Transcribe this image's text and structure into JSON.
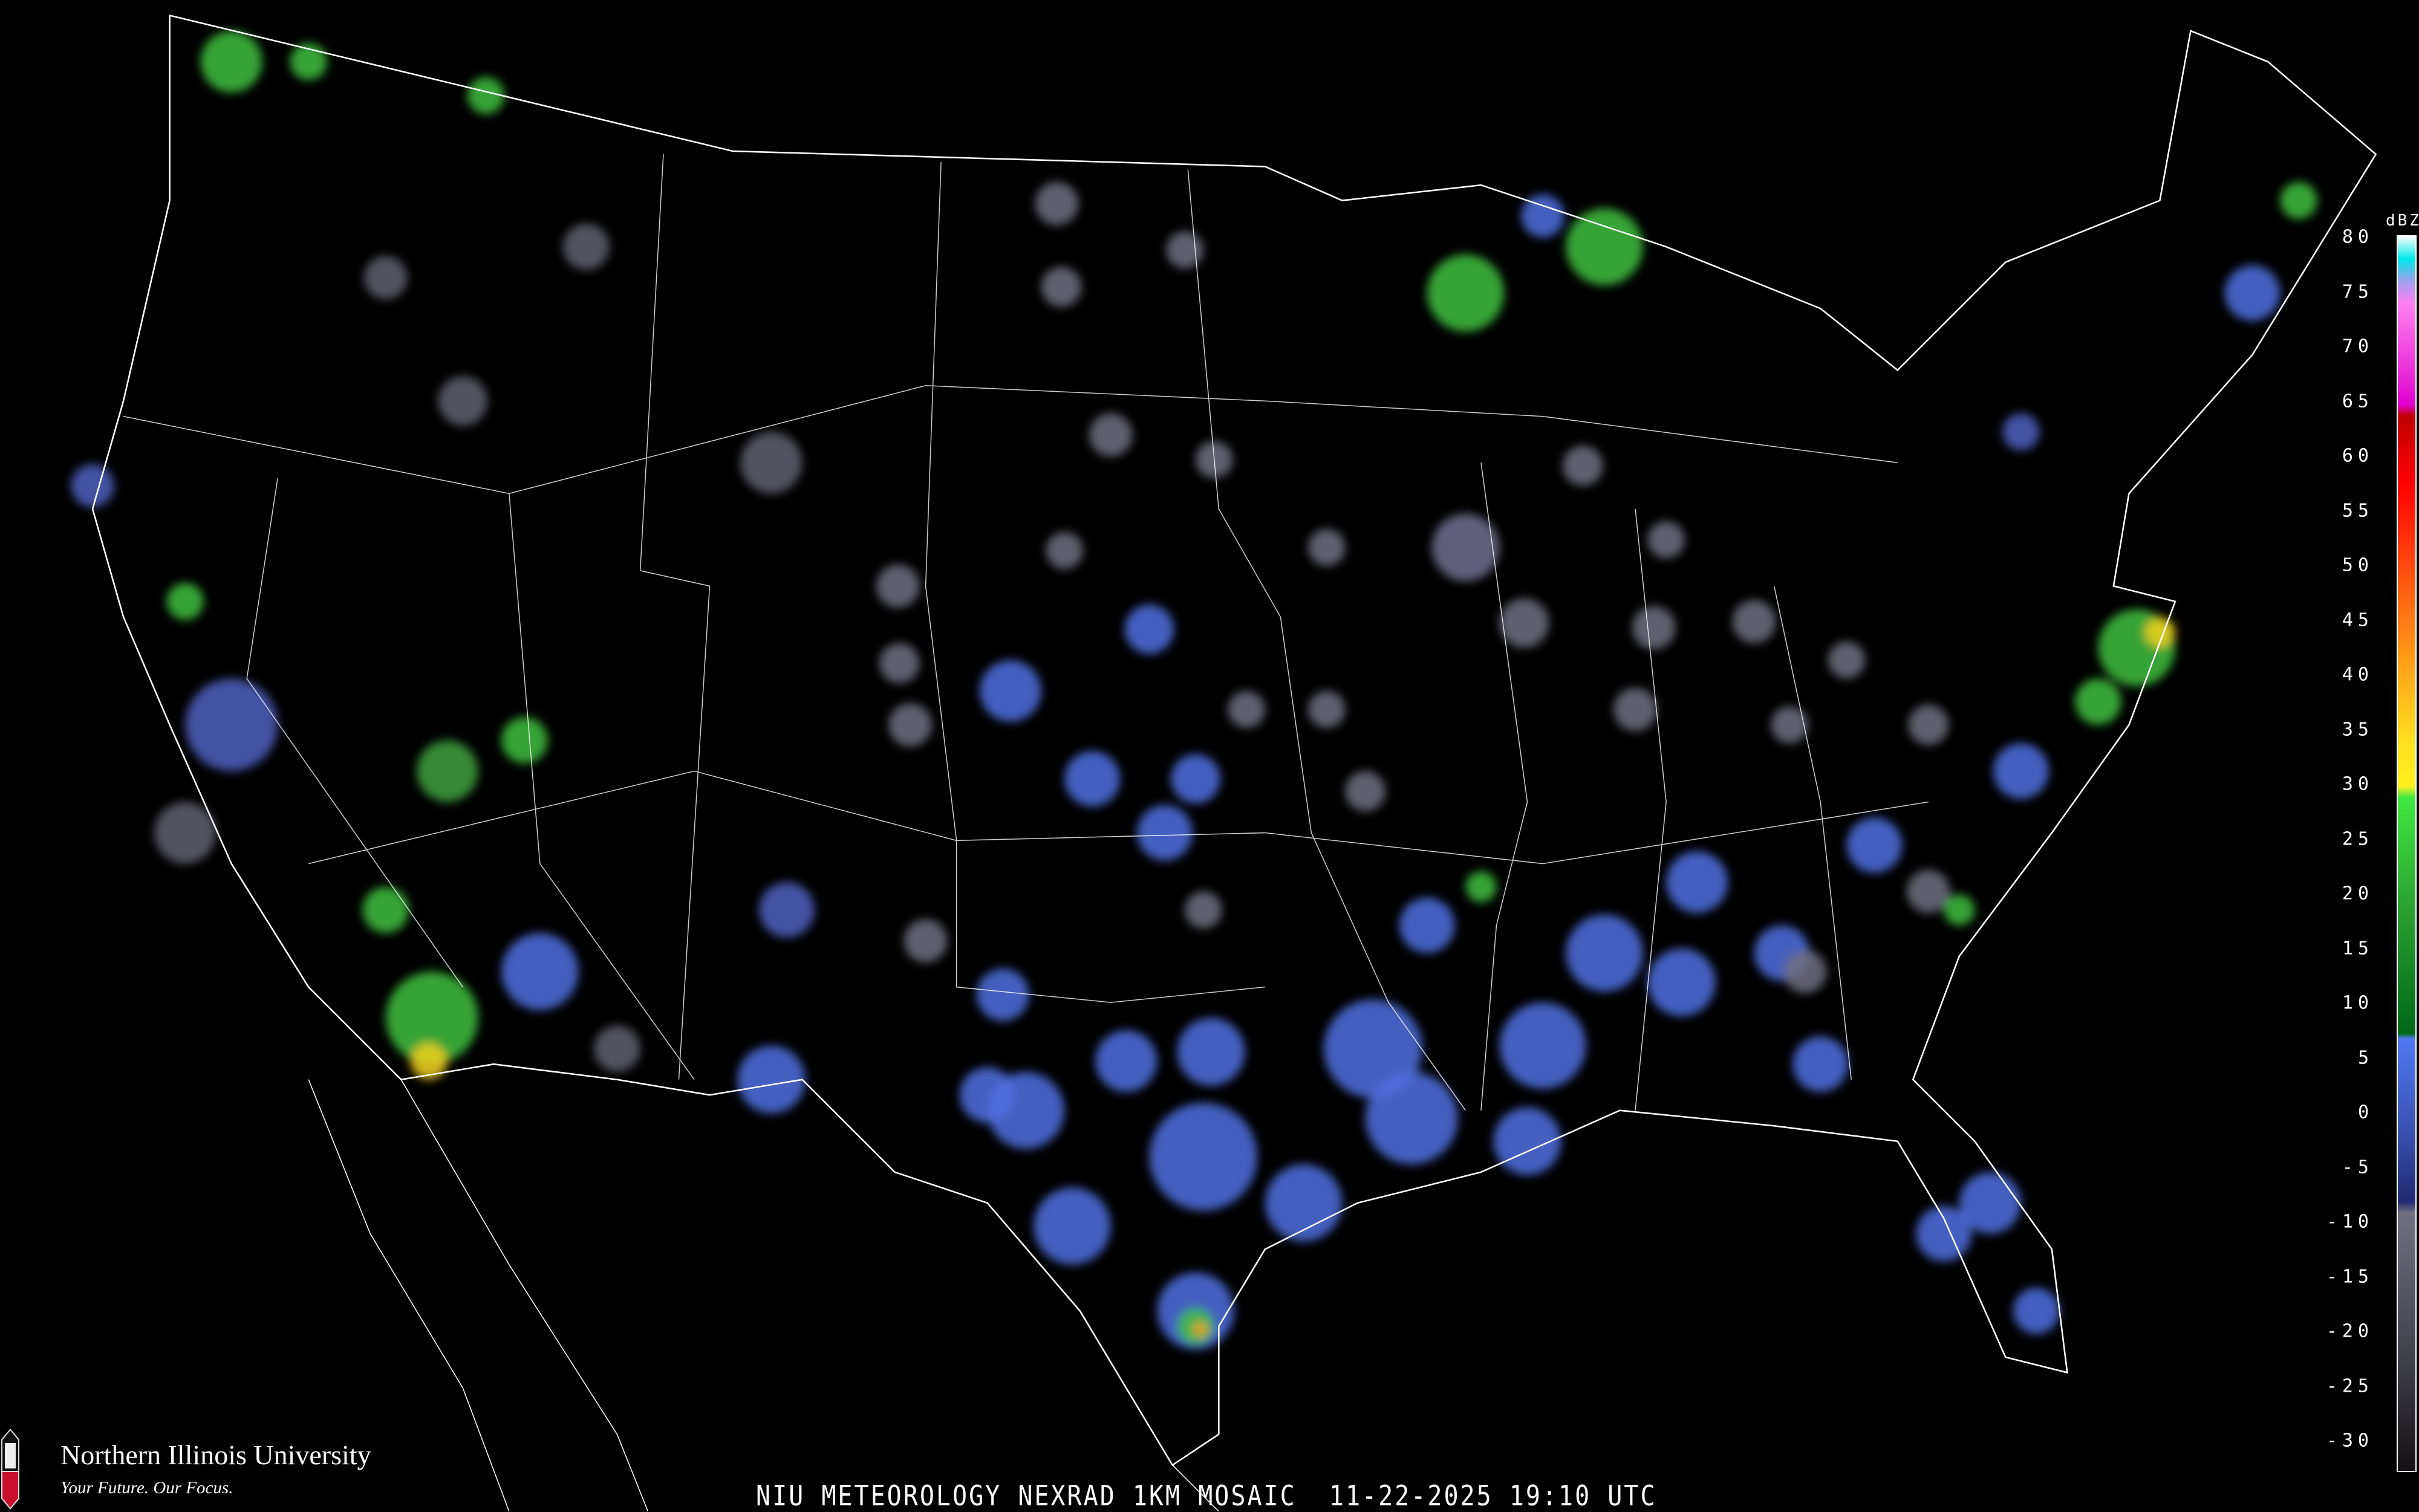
{
  "title": "NIU METEOROLOGY NEXRAD 1KM MOSAIC",
  "date": "11-22-2025",
  "time": "19:10 UTC",
  "logo": {
    "name": "Northern Illinois University",
    "tagline": "Your Future. Our Focus.",
    "badge": "NIU"
  },
  "legend": {
    "unit": "dBZ",
    "ticks": [
      "80",
      "75",
      "70",
      "65",
      "60",
      "55",
      "50",
      "45",
      "40",
      "35",
      "30",
      "25",
      "20",
      "15",
      "10",
      "5",
      "0",
      "-5",
      "-10",
      "-15",
      "-20",
      "-25",
      "-30"
    ],
    "range": [
      -30,
      80
    ],
    "stops": [
      {
        "dbz": 80,
        "color": "#ffffff"
      },
      {
        "dbz": 78,
        "color": "#00e8e8"
      },
      {
        "dbz": 76,
        "color": "#a0a0f0"
      },
      {
        "dbz": 74,
        "color": "#ff80f0"
      },
      {
        "dbz": 68,
        "color": "#e830d8"
      },
      {
        "dbz": 65,
        "color": "#e000d0"
      },
      {
        "dbz": 64,
        "color": "#c00000"
      },
      {
        "dbz": 58,
        "color": "#ff0000"
      },
      {
        "dbz": 50,
        "color": "#ff5010"
      },
      {
        "dbz": 42,
        "color": "#ffa018"
      },
      {
        "dbz": 35,
        "color": "#ffe020"
      },
      {
        "dbz": 31,
        "color": "#fff020"
      },
      {
        "dbz": 30,
        "color": "#40e840"
      },
      {
        "dbz": 20,
        "color": "#2aa030"
      },
      {
        "dbz": 9,
        "color": "#006818"
      },
      {
        "dbz": 8.5,
        "color": "#5078f0"
      },
      {
        "dbz": 0,
        "color": "#3850b0"
      },
      {
        "dbz": -6,
        "color": "#202870"
      },
      {
        "dbz": -7,
        "color": "#707080"
      },
      {
        "dbz": -20,
        "color": "#404048"
      },
      {
        "dbz": -31,
        "color": "#100c10"
      }
    ]
  },
  "colors": {
    "background": "#000000",
    "state_borders": "#ffffff",
    "county_borders": "#6a6a6a",
    "highways": "#8a4a20"
  }
}
